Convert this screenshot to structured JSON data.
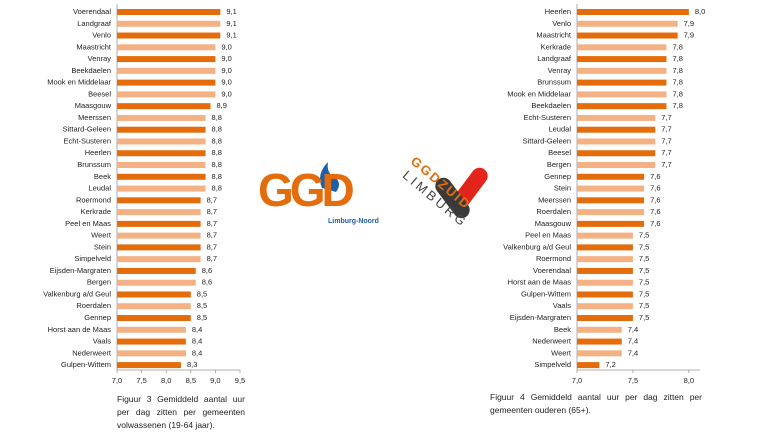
{
  "chart_data": [
    {
      "type": "bar",
      "orientation": "horizontal",
      "caption": "Figuur 3 Gemiddeld aantal uur per dag zitten per gemeenten volwassenen (19-64 jaar).",
      "categories": [
        "Voerendaal",
        "Landgraaf",
        "Venlo",
        "Maastricht",
        "Venray",
        "Beekdaelen",
        "Mook en Middelaar",
        "Beesel",
        "Maasgouw",
        "Meerssen",
        "Sittard-Geleen",
        "Echt-Susteren",
        "Heerlen",
        "Brunssum",
        "Beek",
        "Leudal",
        "Roermond",
        "Kerkrade",
        "Peel en Maas",
        "Weert",
        "Stein",
        "Simpelveld",
        "Eijsden-Margraten",
        "Bergen",
        "Valkenburg a/d Geul",
        "Roerdalen",
        "Gennep",
        "Horst aan de Maas",
        "Vaals",
        "Nederweert",
        "Gulpen-Wittem"
      ],
      "values": [
        9.1,
        9.1,
        9.1,
        9.0,
        9.0,
        9.0,
        9.0,
        9.0,
        8.9,
        8.8,
        8.8,
        8.8,
        8.8,
        8.8,
        8.8,
        8.8,
        8.7,
        8.7,
        8.7,
        8.7,
        8.7,
        8.7,
        8.6,
        8.6,
        8.5,
        8.5,
        8.5,
        8.4,
        8.4,
        8.4,
        8.3
      ],
      "value_labels": [
        "9,1",
        "9,1",
        "9,1",
        "9,0",
        "9,0",
        "9,0",
        "9,0",
        "9,0",
        "8,9",
        "8,8",
        "8,8",
        "8,8",
        "8,8",
        "8,8",
        "8,8",
        "8,8",
        "8,7",
        "8,7",
        "8,7",
        "8,7",
        "8,7",
        "8,7",
        "8,6",
        "8,6",
        "8,5",
        "8,5",
        "8,5",
        "8,4",
        "8,4",
        "8,4",
        "8,3"
      ],
      "colors": [
        "#e46c0a",
        "#f4b183"
      ],
      "xlim": [
        7.0,
        9.5
      ],
      "xticks": [
        {
          "value": 7.0,
          "label": "7,0"
        },
        {
          "value": 7.5,
          "label": "7,5"
        },
        {
          "value": 8.0,
          "label": "8,0"
        },
        {
          "value": 8.5,
          "label": "8,5"
        },
        {
          "value": 9.0,
          "label": "9,0"
        },
        {
          "value": 9.5,
          "label": "9,5"
        }
      ]
    },
    {
      "type": "bar",
      "orientation": "horizontal",
      "caption": "Figuur 4 Gemiddeld aantal uur per dag zitten per gemeenten ouderen (65+).",
      "categories": [
        "Heerlen",
        "Venlo",
        "Maastricht",
        "Kerkrade",
        "Landgraaf",
        "Venray",
        "Brunssum",
        "Mook en Middelaar",
        "Beekdaelen",
        "Echt-Susteren",
        "Leudal",
        "Sittard-Geleen",
        "Beesel",
        "Bergen",
        "Gennep",
        "Stein",
        "Meerssen",
        "Roerdalen",
        "Maasgouw",
        "Peel en Maas",
        "Valkenburg a/d Geul",
        "Roermond",
        "Voerendaal",
        "Horst aan de Maas",
        "Gulpen-Wittem",
        "Vaals",
        "Eijsden-Margraten",
        "Beek",
        "Nederweert",
        "Weert",
        "Simpelveld"
      ],
      "values": [
        8.0,
        7.9,
        7.9,
        7.8,
        7.8,
        7.8,
        7.8,
        7.8,
        7.8,
        7.7,
        7.7,
        7.7,
        7.7,
        7.7,
        7.6,
        7.6,
        7.6,
        7.6,
        7.6,
        7.5,
        7.5,
        7.5,
        7.5,
        7.5,
        7.5,
        7.5,
        7.5,
        7.4,
        7.4,
        7.4,
        7.2
      ],
      "value_labels": [
        "8,0",
        "7,9",
        "7,9",
        "7,8",
        "7,8",
        "7,8",
        "7,8",
        "7,8",
        "7,8",
        "7,7",
        "7,7",
        "7,7",
        "7,7",
        "7,7",
        "7,6",
        "7,6",
        "7,6",
        "7,6",
        "7,6",
        "7,5",
        "7,5",
        "7,5",
        "7,5",
        "7,5",
        "7,5",
        "7,5",
        "7,5",
        "7,4",
        "7,4",
        "7,4",
        "7,2"
      ],
      "colors": [
        "#e46c0a",
        "#f4b183"
      ],
      "xlim": [
        7.0,
        8.1
      ],
      "xticks": [
        {
          "value": 7.0,
          "label": "7,0"
        },
        {
          "value": 7.5,
          "label": "7,5"
        },
        {
          "value": 8.0,
          "label": "8,0"
        }
      ]
    }
  ],
  "logos": {
    "left": {
      "name": "GGD",
      "region": "Limburg-Noord"
    },
    "right": {
      "name": "GGDZUID",
      "region": "LIMBURG"
    }
  }
}
